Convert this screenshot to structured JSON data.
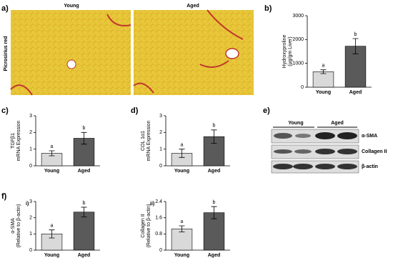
{
  "figure": {
    "panel_a": "a)",
    "young_title": "Young",
    "aged_title": "Aged",
    "stain_label": "Picrosirius red",
    "panel_e": "e)",
    "panel_f": "f)",
    "blot": {
      "groups": [
        "Young",
        "Aged"
      ],
      "rows": [
        "α-SMA",
        "Collagen II",
        "β-actin"
      ]
    }
  },
  "chart_data": [
    {
      "type": "bar",
      "panel": "b)",
      "ylabel": [
        "Hydroxyproline",
        "(μg/gm Liver)"
      ],
      "categories": [
        "Young",
        "Aged"
      ],
      "values": [
        650,
        1720
      ],
      "errors": [
        80,
        320
      ],
      "annotations": [
        "a",
        "b"
      ],
      "colors": [
        "#d9d9d9",
        "#5a5a5a"
      ],
      "ylim": [
        0,
        3000
      ],
      "yticks": [
        0,
        1000,
        2000,
        3000
      ]
    },
    {
      "type": "bar",
      "panel": "c)",
      "ylabel": [
        "TGFβ1",
        "mRNA Expression"
      ],
      "categories": [
        "Young",
        "Aged"
      ],
      "values": [
        0.75,
        1.65
      ],
      "errors": [
        0.15,
        0.35
      ],
      "annotations": [
        "a",
        "b"
      ],
      "colors": [
        "#d9d9d9",
        "#5a5a5a"
      ],
      "ylim": [
        0,
        3
      ],
      "yticks": [
        0,
        1,
        2,
        3
      ]
    },
    {
      "type": "bar",
      "panel": "d)",
      "ylabel": [
        "COL 1α1",
        "mRNA Expression"
      ],
      "categories": [
        "Young",
        "Aged"
      ],
      "values": [
        0.75,
        1.75
      ],
      "errors": [
        0.25,
        0.4
      ],
      "annotations": [
        "a",
        "b"
      ],
      "colors": [
        "#d9d9d9",
        "#5a5a5a"
      ],
      "ylim": [
        0,
        3
      ],
      "yticks": [
        0,
        1,
        2,
        3
      ]
    },
    {
      "type": "bar",
      "panel": "i)",
      "ylabel": [
        "α-SMA",
        "(Relative to β-actin)"
      ],
      "categories": [
        "Young",
        "Aged"
      ],
      "values": [
        1.0,
        2.35
      ],
      "errors": [
        0.25,
        0.3
      ],
      "annotations": [
        "a",
        "b"
      ],
      "colors": [
        "#d9d9d9",
        "#5a5a5a"
      ],
      "ylim": [
        0,
        3
      ],
      "yticks": [
        0,
        1,
        2,
        3
      ]
    },
    {
      "type": "bar",
      "panel": "ii)",
      "ylabel": [
        "Collagen II",
        "(Relative to β-actin)"
      ],
      "categories": [
        "Young",
        "Aged"
      ],
      "values": [
        1.05,
        1.85
      ],
      "errors": [
        0.15,
        0.3
      ],
      "annotations": [
        "a",
        "b"
      ],
      "colors": [
        "#d9d9d9",
        "#5a5a5a"
      ],
      "ylim": [
        0,
        2.4
      ],
      "yticks": [
        0,
        0.8,
        1.6,
        2.4
      ]
    }
  ]
}
